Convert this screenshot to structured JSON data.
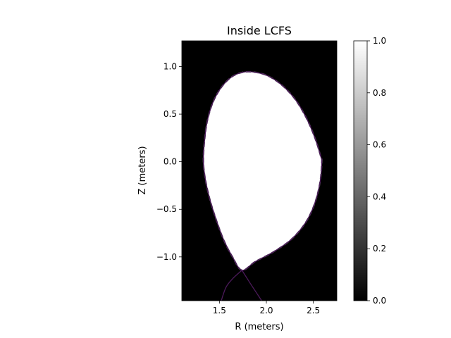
{
  "chart_data": {
    "type": "heatmap",
    "title": "Inside LCFS",
    "xlabel": "R (meters)",
    "ylabel": "Z (meters)",
    "xlim": [
      1.1,
      2.75
    ],
    "ylim": [
      -1.46,
      1.27
    ],
    "x_ticks": [
      1.5,
      2.0,
      2.5
    ],
    "x_tick_labels": [
      "1.5",
      "2.0",
      "2.5"
    ],
    "y_ticks": [
      1.0,
      0.5,
      0.0,
      -0.5,
      -1.0
    ],
    "y_tick_labels": [
      "1.0",
      "0.5",
      "0.0",
      "−0.5",
      "−1.0"
    ],
    "grid": false,
    "colormap": "gray",
    "mask_values": {
      "outside": 0.0,
      "inside": 1.0
    },
    "lcfs_color": "#4b1a5a",
    "lcfs_boundary": [
      [
        1.74,
        -1.14
      ],
      [
        1.64,
        -1.0
      ],
      [
        1.55,
        -0.83
      ],
      [
        1.47,
        -0.62
      ],
      [
        1.4,
        -0.4
      ],
      [
        1.35,
        -0.18
      ],
      [
        1.33,
        0.0
      ],
      [
        1.34,
        0.2
      ],
      [
        1.37,
        0.42
      ],
      [
        1.43,
        0.62
      ],
      [
        1.52,
        0.78
      ],
      [
        1.63,
        0.89
      ],
      [
        1.75,
        0.94
      ],
      [
        1.88,
        0.94
      ],
      [
        2.02,
        0.9
      ],
      [
        2.17,
        0.8
      ],
      [
        2.31,
        0.65
      ],
      [
        2.43,
        0.45
      ],
      [
        2.52,
        0.24
      ],
      [
        2.58,
        0.05
      ],
      [
        2.59,
        0.0
      ],
      [
        2.57,
        -0.22
      ],
      [
        2.51,
        -0.45
      ],
      [
        2.41,
        -0.65
      ],
      [
        2.26,
        -0.82
      ],
      [
        2.07,
        -0.95
      ],
      [
        1.88,
        -1.05
      ],
      [
        1.74,
        -1.14
      ]
    ],
    "separatrix_legs": [
      [
        [
          1.74,
          -1.14
        ],
        [
          1.64,
          -1.23
        ],
        [
          1.57,
          -1.32
        ],
        [
          1.52,
          -1.46
        ]
      ],
      [
        [
          1.74,
          -1.14
        ],
        [
          1.83,
          -1.28
        ],
        [
          1.91,
          -1.4
        ],
        [
          1.95,
          -1.46
        ]
      ]
    ],
    "colorbar": {
      "vmin": 0.0,
      "vmax": 1.0,
      "ticks": [
        0.0,
        0.2,
        0.4,
        0.6,
        0.8,
        1.0
      ],
      "tick_labels": [
        "0.0",
        "0.2",
        "0.4",
        "0.6",
        "0.8",
        "1.0"
      ]
    }
  }
}
